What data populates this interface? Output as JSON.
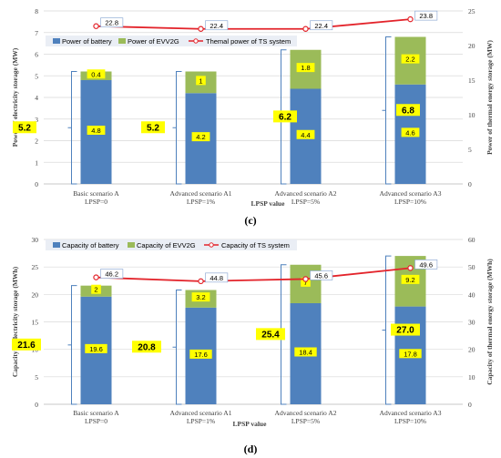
{
  "chart_data": [
    {
      "type": "bar",
      "panel": "(c)",
      "stacked": true,
      "categories": [
        "Basic scenario A\nLPSP=0",
        "Advanced scenario A1\nLPSP=1%",
        "Advanced scenario A2\nLPSP=5%",
        "Advanced scenario A3\nLPSP=10%"
      ],
      "xlabel": "LPSP value",
      "ylabel": "Power of electricity storage (MW)",
      "y2label": "Power of thermal energy storage (MW)",
      "ylim": [
        0,
        8
      ],
      "y2lim": [
        0,
        25
      ],
      "yticks": [
        0,
        1,
        2,
        3,
        4,
        5,
        6,
        7,
        8
      ],
      "y2ticks": [
        0,
        5,
        10,
        15,
        20,
        25
      ],
      "series": [
        {
          "name": "Power of battery",
          "values": [
            4.8,
            4.2,
            4.4,
            4.6
          ],
          "labels": [
            "4.8",
            "4.2",
            "4.4",
            "4.6"
          ],
          "color": "#4f81bd"
        },
        {
          "name": "Power of EVV2G",
          "values": [
            0.4,
            1,
            1.8,
            2.2
          ],
          "labels": [
            "0.4",
            "1",
            "1.8",
            "2.2"
          ],
          "color": "#9bbb59"
        }
      ],
      "totals": [
        "5.2",
        "5.2",
        "6.2",
        "6.8"
      ],
      "line": {
        "name": "Themal power of TS system",
        "values": [
          22.8,
          22.4,
          22.4,
          23.8
        ],
        "labels": [
          "22.8",
          "22.4",
          "22.4",
          "23.8"
        ],
        "axis": "right",
        "color": "#e3242b"
      },
      "legend": "top"
    },
    {
      "type": "bar",
      "panel": "(d)",
      "stacked": true,
      "categories": [
        "Basic scenario A\nLPSP=0",
        "Advanced scenario A1\nLPSP=1%",
        "Advanced scenario A2\nLPSP=5%",
        "Advanced scenario A3\nLPSP=10%"
      ],
      "xlabel": "LPSP value",
      "ylabel": "Capacity of electricity storage (MWh)",
      "y2label": "Capacity of thermal energy storage (MWh)",
      "ylim": [
        0,
        30
      ],
      "y2lim": [
        0,
        60
      ],
      "yticks": [
        0,
        5,
        10,
        15,
        20,
        25,
        30
      ],
      "y2ticks": [
        0,
        10,
        20,
        30,
        40,
        50,
        60
      ],
      "series": [
        {
          "name": "Capacity of battery",
          "values": [
            19.6,
            17.6,
            18.4,
            17.8
          ],
          "labels": [
            "19.6",
            "17.6",
            "18.4",
            "17.8"
          ],
          "color": "#4f81bd"
        },
        {
          "name": "Capacity of EVV2G",
          "values": [
            2,
            3.2,
            7,
            9.2
          ],
          "labels": [
            "2",
            "3.2",
            "7",
            "9.2"
          ],
          "color": "#9bbb59"
        }
      ],
      "totals": [
        "21.6",
        "20.8",
        "25.4",
        "27.0"
      ],
      "line": {
        "name": "Capacity of TS system",
        "values": [
          46.2,
          44.8,
          45.6,
          49.6
        ],
        "labels": [
          "46.2",
          "44.8",
          "45.6",
          "49.6"
        ],
        "axis": "right",
        "color": "#e3242b"
      },
      "legend": "top"
    }
  ]
}
